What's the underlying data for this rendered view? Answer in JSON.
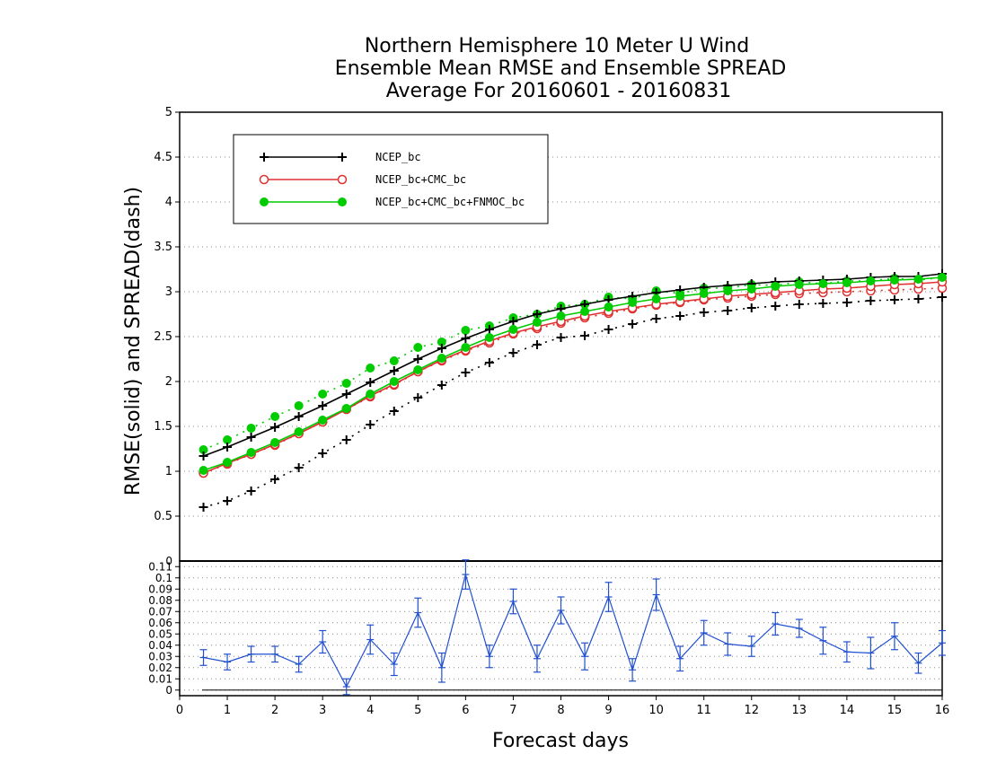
{
  "colors": {
    "ncep": "#000000",
    "cmc": "#e03030",
    "fnmoc": "#00cc00",
    "diff": "#2050d0",
    "grid": "#888888"
  },
  "chart_data": [
    {
      "type": "line",
      "title": [
        "Northern Hemisphere 10 Meter U Wind",
        "Ensemble Mean RMSE and Ensemble SPREAD",
        "Average For 20160601 - 20160831"
      ],
      "xlabel": "Forecast days",
      "ylabel": "RMSE(solid)  and  SPREAD(dash)",
      "xlim": [
        0,
        16
      ],
      "ylim": [
        0,
        5
      ],
      "xticks": [
        "0",
        "1",
        "2",
        "3",
        "4",
        "5",
        "6",
        "7",
        "8",
        "9",
        "10",
        "11",
        "12",
        "13",
        "14",
        "15",
        "16"
      ],
      "yticks": [
        "0.5",
        "1",
        "1.5",
        "2",
        "2.5",
        "3",
        "3.5",
        "4",
        "4.5",
        "5"
      ],
      "grid": true,
      "legend_position": "top-left",
      "x": [
        0.5,
        1,
        1.5,
        2,
        2.5,
        3,
        3.5,
        4,
        4.5,
        5,
        5.5,
        6,
        6.5,
        7,
        7.5,
        8,
        8.5,
        9,
        9.5,
        10,
        10.5,
        11,
        11.5,
        12,
        12.5,
        13,
        13.5,
        14,
        14.5,
        15,
        15.5,
        16
      ],
      "series": [
        {
          "name": "NCEP_bc",
          "style": "solid",
          "marker": "plus",
          "color_key": "ncep",
          "values": [
            1.17,
            1.27,
            1.38,
            1.49,
            1.61,
            1.73,
            1.86,
            1.99,
            2.12,
            2.25,
            2.37,
            2.48,
            2.58,
            2.67,
            2.75,
            2.81,
            2.86,
            2.91,
            2.95,
            2.99,
            3.02,
            3.05,
            3.07,
            3.09,
            3.11,
            3.12,
            3.13,
            3.14,
            3.16,
            3.17,
            3.17,
            3.2
          ]
        },
        {
          "name": "NCEP_bc+CMC_bc",
          "style": "solid",
          "marker": "circle",
          "color_key": "cmc",
          "values": [
            0.98,
            1.09,
            1.19,
            1.3,
            1.42,
            1.55,
            1.69,
            1.84,
            1.97,
            2.11,
            2.24,
            2.35,
            2.45,
            2.54,
            2.61,
            2.67,
            2.73,
            2.78,
            2.82,
            2.86,
            2.89,
            2.92,
            2.95,
            2.97,
            2.99,
            3.01,
            3.03,
            3.04,
            3.06,
            3.08,
            3.09,
            3.11
          ]
        },
        {
          "name": "NCEP_bc+CMC_bc+FNMOC_bc",
          "style": "solid",
          "marker": "dot",
          "color_key": "fnmoc",
          "values": [
            1.01,
            1.1,
            1.21,
            1.32,
            1.44,
            1.57,
            1.7,
            1.86,
            2.0,
            2.13,
            2.26,
            2.38,
            2.49,
            2.58,
            2.66,
            2.73,
            2.78,
            2.83,
            2.88,
            2.92,
            2.95,
            2.98,
            3.01,
            3.03,
            3.06,
            3.08,
            3.09,
            3.1,
            3.12,
            3.13,
            3.14,
            3.16
          ]
        },
        {
          "name": "",
          "style": "dash",
          "marker": "plus",
          "color_key": "ncep",
          "values": [
            0.6,
            0.67,
            0.78,
            0.91,
            1.04,
            1.2,
            1.35,
            1.52,
            1.67,
            1.82,
            1.96,
            2.1,
            2.21,
            2.32,
            2.41,
            2.49,
            2.51,
            2.58,
            2.64,
            2.7,
            2.73,
            2.77,
            2.79,
            2.82,
            2.84,
            2.86,
            2.87,
            2.88,
            2.9,
            2.91,
            2.92,
            2.94
          ]
        },
        {
          "name": "",
          "style": "dash",
          "marker": "circle",
          "color_key": "cmc",
          "values": [
            0.98,
            1.08,
            1.19,
            1.29,
            1.42,
            1.55,
            1.69,
            1.83,
            1.96,
            2.11,
            2.23,
            2.34,
            2.43,
            2.53,
            2.59,
            2.65,
            2.71,
            2.76,
            2.81,
            2.85,
            2.88,
            2.91,
            2.93,
            2.95,
            2.97,
            2.98,
            2.99,
            3.0,
            3.01,
            3.02,
            3.03,
            3.04
          ]
        },
        {
          "name": "",
          "style": "dash",
          "marker": "dot",
          "color_key": "fnmoc",
          "values": [
            1.24,
            1.35,
            1.48,
            1.61,
            1.73,
            1.86,
            1.98,
            2.15,
            2.23,
            2.38,
            2.44,
            2.57,
            2.62,
            2.71,
            2.75,
            2.84,
            2.86,
            2.94,
            2.92,
            3.01,
            2.98,
            3.04,
            3.04,
            3.08,
            3.07,
            3.11,
            3.09,
            3.12,
            3.12,
            3.15,
            3.13,
            3.16
          ]
        }
      ]
    },
    {
      "type": "line",
      "xlim": [
        0,
        16
      ],
      "ylim": [
        -0.005,
        0.115
      ],
      "yticks": [
        "0",
        "0.01",
        "0.02",
        "0.03",
        "0.04",
        "0.05",
        "0.06",
        "0.07",
        "0.08",
        "0.09",
        "0.1",
        "0.11"
      ],
      "top_label": "0",
      "grid": true,
      "x": [
        0.5,
        1,
        1.5,
        2,
        2.5,
        3,
        3.5,
        4,
        4.5,
        5,
        5.5,
        6,
        6.5,
        7,
        7.5,
        8,
        8.5,
        9,
        9.5,
        10,
        10.5,
        11,
        11.5,
        12,
        12.5,
        13,
        13.5,
        14,
        14.5,
        15,
        15.5,
        16
      ],
      "series": [
        {
          "name": "",
          "color_key": "diff",
          "marker": "errorbar",
          "values": [
            0.029,
            0.025,
            0.032,
            0.032,
            0.023,
            0.043,
            0.003,
            0.045,
            0.023,
            0.069,
            0.02,
            0.103,
            0.03,
            0.079,
            0.028,
            0.071,
            0.03,
            0.083,
            0.018,
            0.085,
            0.028,
            0.051,
            0.041,
            0.039,
            0.059,
            0.055,
            0.044,
            0.034,
            0.033,
            0.048,
            0.024,
            0.042
          ],
          "errors": [
            0.007,
            0.007,
            0.007,
            0.007,
            0.007,
            0.01,
            0.007,
            0.013,
            0.01,
            0.013,
            0.013,
            0.013,
            0.01,
            0.011,
            0.012,
            0.012,
            0.012,
            0.013,
            0.01,
            0.014,
            0.011,
            0.011,
            0.01,
            0.009,
            0.01,
            0.008,
            0.012,
            0.009,
            0.014,
            0.012,
            0.009,
            0.011
          ]
        }
      ]
    }
  ]
}
